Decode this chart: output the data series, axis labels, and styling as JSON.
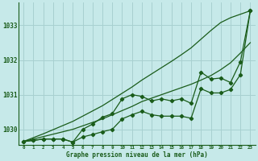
{
  "title": "Graphe pression niveau de la mer (hPa)",
  "bg_color": "#c6e9e9",
  "grid_color": "#a8d0d0",
  "line_color": "#1a5c1a",
  "xlim": [
    -0.5,
    23.5
  ],
  "ylim": [
    1029.55,
    1033.65
  ],
  "yticks": [
    1030,
    1031,
    1032,
    1033
  ],
  "xticks": [
    0,
    1,
    2,
    3,
    4,
    5,
    6,
    7,
    8,
    9,
    10,
    11,
    12,
    13,
    14,
    15,
    16,
    17,
    18,
    19,
    20,
    21,
    22,
    23
  ],
  "smooth_low": [
    1029.65,
    1029.72,
    1029.79,
    1029.86,
    1029.93,
    1030.0,
    1030.1,
    1030.2,
    1030.3,
    1030.42,
    1030.54,
    1030.66,
    1030.8,
    1030.9,
    1031.0,
    1031.1,
    1031.2,
    1031.3,
    1031.42,
    1031.55,
    1031.72,
    1031.92,
    1032.2,
    1032.5
  ],
  "smooth_high": [
    1029.65,
    1029.76,
    1029.87,
    1029.99,
    1030.11,
    1030.23,
    1030.38,
    1030.53,
    1030.68,
    1030.86,
    1031.04,
    1031.22,
    1031.42,
    1031.6,
    1031.78,
    1031.96,
    1032.15,
    1032.35,
    1032.6,
    1032.85,
    1033.08,
    1033.22,
    1033.32,
    1033.42
  ],
  "series1": [
    1029.65,
    1029.68,
    1029.72,
    1029.72,
    1029.72,
    1029.63,
    1029.78,
    1029.85,
    1029.93,
    1030.0,
    1030.3,
    1030.42,
    1030.52,
    1030.42,
    1030.38,
    1030.38,
    1030.38,
    1030.32,
    1031.17,
    1031.05,
    1031.05,
    1031.15,
    1031.58,
    1033.42
  ],
  "series2": [
    1029.65,
    1029.68,
    1029.72,
    1029.72,
    1029.72,
    1029.63,
    1030.0,
    1030.15,
    1030.35,
    1030.45,
    1030.88,
    1031.0,
    1030.95,
    1030.82,
    1030.88,
    1030.82,
    1030.88,
    1030.75,
    1031.65,
    1031.45,
    1031.48,
    1031.35,
    1031.95,
    1033.42
  ]
}
